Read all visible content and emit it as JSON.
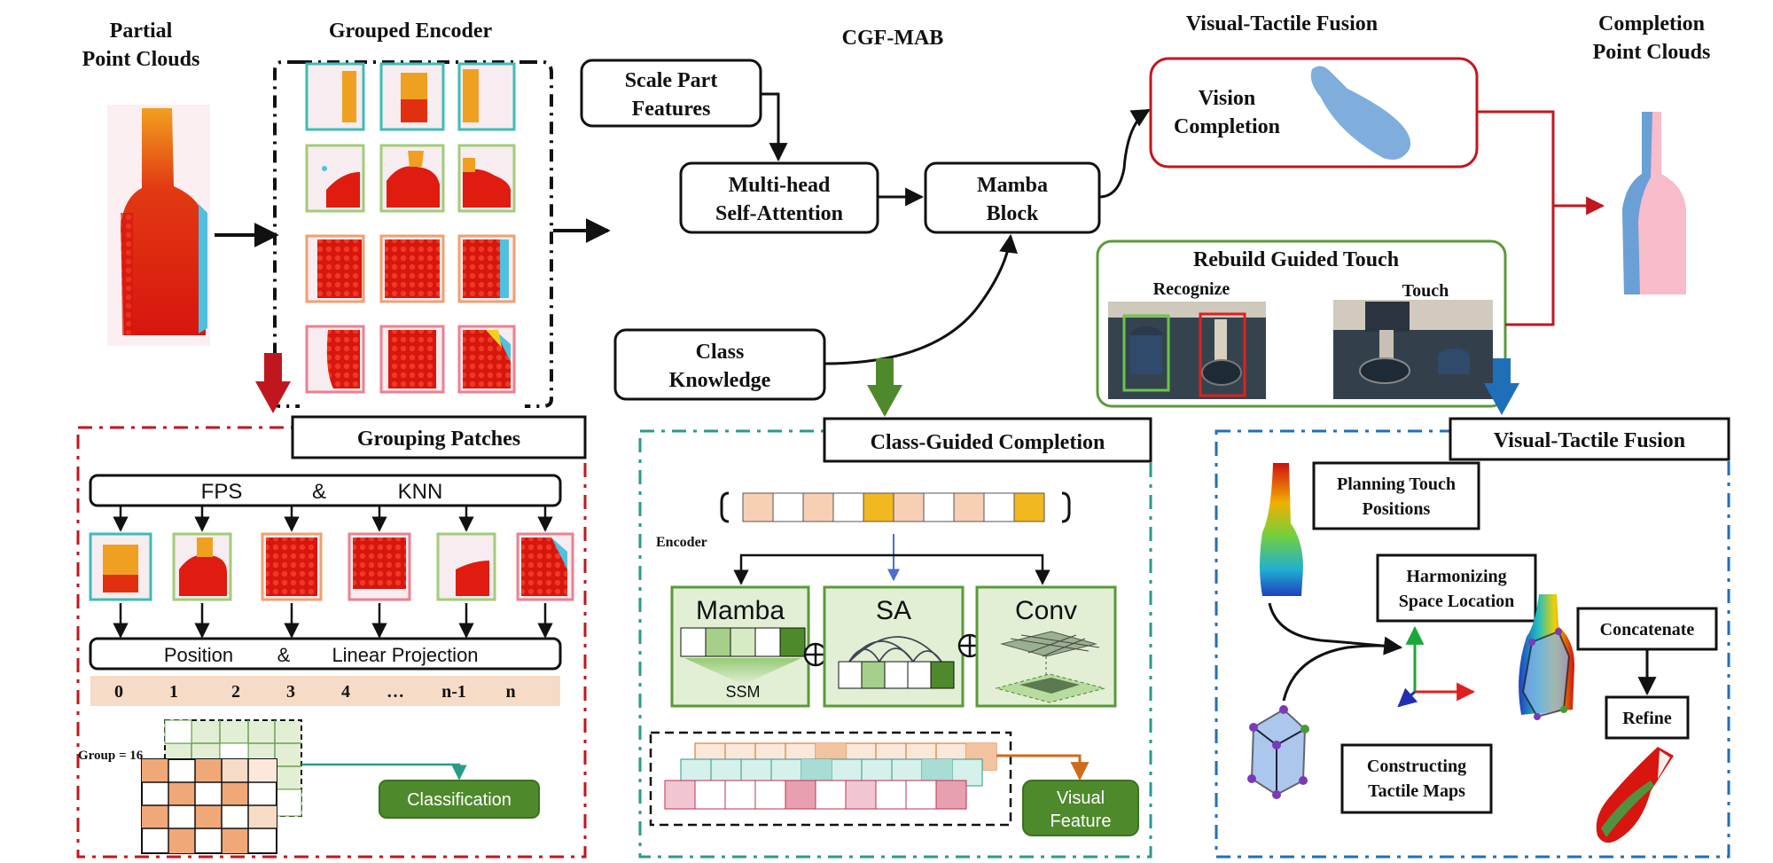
{
  "top": {
    "partial_title": [
      "Partial",
      "Point Clouds"
    ],
    "grouped_encoder": "Grouped Encoder",
    "cgf_mab": "CGF-MAB",
    "scale_part": [
      "Scale Part",
      "Features"
    ],
    "mhsa": [
      "Multi-head",
      "Self-Attention"
    ],
    "mamba_block": [
      "Mamba",
      "Block"
    ],
    "class_knowledge": [
      "Class",
      "Knowledge"
    ],
    "vt_fusion_title": "Visual-Tactile  Fusion",
    "vision_completion": [
      "Vision",
      "Completion"
    ],
    "rebuild_title": "Rebuild Guided Touch",
    "recognize": "Recognize",
    "touch": "Touch",
    "completion_title": [
      "Completion",
      "Point Clouds"
    ]
  },
  "grouping": {
    "title": "Grouping Patches",
    "fps": "FPS",
    "amp": "&",
    "knn": "KNN",
    "position": "Position",
    "linear": "Linear  Projection",
    "indices": [
      "0",
      "1",
      "2",
      "3",
      "4",
      "…",
      "n-1",
      "n"
    ],
    "group_label": "Group = 16",
    "classification": "Classification"
  },
  "class_guided": {
    "title": "Class-Guided Completion",
    "encoder": "Encoder",
    "mamba": "Mamba",
    "ssm": "SSM",
    "sa": "SA",
    "conv": "Conv",
    "visual_feature": [
      "Visual",
      "Feature"
    ]
  },
  "vt": {
    "title": "Visual-Tactile  Fusion",
    "planning": [
      "Planning Touch",
      "Positions"
    ],
    "harmonizing": [
      "Harmonizing",
      "Space Location"
    ],
    "concatenate": "Concatenate",
    "refine": "Refine",
    "constructing": [
      "Constructing",
      "Tactile Maps"
    ]
  },
  "colors": {
    "red_dash": "#c0171e",
    "teal_dash": "#2a9a8a",
    "blue_dash": "#1f6fb8",
    "green": "#4e8a2c",
    "green_fill": "#e2efd5",
    "peach": "#f6dbc6",
    "orange_cell": "#f1b84a",
    "vision_red": "#c0171e",
    "arrow_red": "#c0171e"
  }
}
